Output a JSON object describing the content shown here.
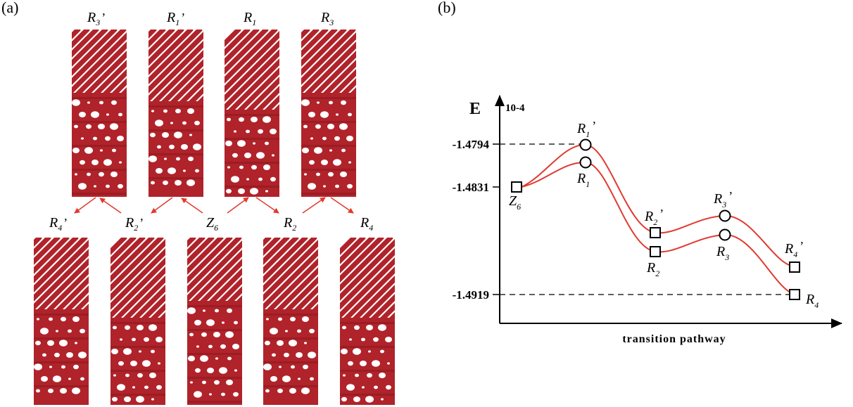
{
  "panels": {
    "a": "(a)",
    "b": "(b)"
  },
  "structures_top": [
    {
      "name": "R",
      "sub": "3",
      "prime": "’"
    },
    {
      "name": "R",
      "sub": "1",
      "prime": "’"
    },
    {
      "name": "R",
      "sub": "1",
      "prime": ""
    },
    {
      "name": "R",
      "sub": "3",
      "prime": ""
    }
  ],
  "structures_bottom": [
    {
      "name": "R",
      "sub": "4",
      "prime": "’"
    },
    {
      "name": "R",
      "sub": "2",
      "prime": "’"
    },
    {
      "name": "Z",
      "sub": "6",
      "prime": ""
    },
    {
      "name": "R",
      "sub": "2",
      "prime": ""
    },
    {
      "name": "R",
      "sub": "4",
      "prime": ""
    }
  ],
  "colors": {
    "structure": "#b0232a",
    "arrow": "#e03a2f",
    "curve": "#e03a2f",
    "axis": "#000000"
  },
  "energy_chart": {
    "y_axis_label": "E",
    "y_axis_multiplier": "10-4",
    "x_axis_label": "transition pathway",
    "y_ticks": [
      {
        "label": "-1.4794",
        "value": -1.4794
      },
      {
        "label": "-1.4831",
        "value": -1.4831
      },
      {
        "label": "-1.4919",
        "value": -1.4919
      }
    ],
    "points": [
      {
        "id": "Z6",
        "name": "Z",
        "sub": "6",
        "prime": "",
        "marker": "square"
      },
      {
        "id": "R1p",
        "name": "R",
        "sub": "1",
        "prime": "’",
        "marker": "circle"
      },
      {
        "id": "R1",
        "name": "R",
        "sub": "1",
        "prime": "",
        "marker": "circle"
      },
      {
        "id": "R2p",
        "name": "R",
        "sub": "2",
        "prime": "’",
        "marker": "square"
      },
      {
        "id": "R2",
        "name": "R",
        "sub": "2",
        "prime": "",
        "marker": "square"
      },
      {
        "id": "R3p",
        "name": "R",
        "sub": "3",
        "prime": "’",
        "marker": "circle"
      },
      {
        "id": "R3",
        "name": "R",
        "sub": "3",
        "prime": "",
        "marker": "circle"
      },
      {
        "id": "R4p",
        "name": "R",
        "sub": "4",
        "prime": "’",
        "marker": "square"
      },
      {
        "id": "R4",
        "name": "R",
        "sub": "4",
        "prime": "",
        "marker": "square"
      }
    ]
  }
}
